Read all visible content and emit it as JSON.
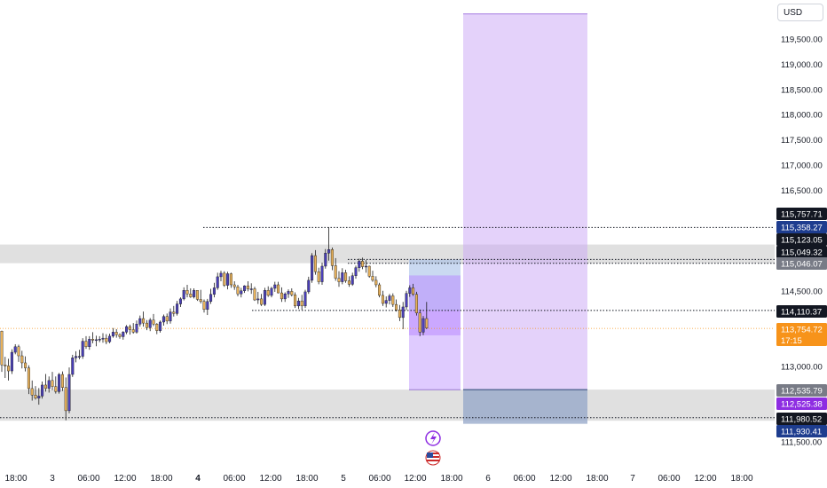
{
  "chart_data": {
    "type": "candlestick",
    "currency": "USD",
    "y_axis": {
      "range": [
        111250,
        120000
      ],
      "ticks": [
        {
          "value": 119500,
          "label": "119,500.00"
        },
        {
          "value": 119000,
          "label": "119,000.00"
        },
        {
          "value": 118500,
          "label": "118,500.00"
        },
        {
          "value": 118000,
          "label": "118,000.00"
        },
        {
          "value": 117500,
          "label": "117,500.00"
        },
        {
          "value": 117000,
          "label": "117,000.00"
        },
        {
          "value": 116500,
          "label": "116,500.00"
        },
        {
          "value": 114500,
          "label": "114,500.00"
        },
        {
          "value": 113000,
          "label": "113,000.00"
        },
        {
          "value": 111500,
          "label": "111,500.00"
        }
      ]
    },
    "x_axis": {
      "ticks": [
        {
          "label": "18:00",
          "bold": false
        },
        {
          "label": "3",
          "bold": false
        },
        {
          "label": "06:00",
          "bold": false
        },
        {
          "label": "12:00",
          "bold": false
        },
        {
          "label": "18:00",
          "bold": false
        },
        {
          "label": "4",
          "bold": true
        },
        {
          "label": "06:00",
          "bold": false
        },
        {
          "label": "12:00",
          "bold": false
        },
        {
          "label": "18:00",
          "bold": false
        },
        {
          "label": "5",
          "bold": false
        },
        {
          "label": "06:00",
          "bold": false
        },
        {
          "label": "12:00",
          "bold": false
        },
        {
          "label": "18:00",
          "bold": false
        },
        {
          "label": "6",
          "bold": false
        },
        {
          "label": "06:00",
          "bold": false
        },
        {
          "label": "12:00",
          "bold": false
        },
        {
          "label": "18:00",
          "bold": false
        },
        {
          "label": "7",
          "bold": false
        },
        {
          "label": "06:00",
          "bold": false
        },
        {
          "label": "12:00",
          "bold": false
        },
        {
          "label": "18:00",
          "bold": false
        }
      ]
    },
    "price_labels": [
      {
        "value": 115757.71,
        "text": "115,757.71",
        "bg": "#131722"
      },
      {
        "value": 115358.27,
        "text": "115,358.27",
        "bg": "#1e3d8f"
      },
      {
        "value": 115123.05,
        "text": "115,123.05",
        "bg": "#131722"
      },
      {
        "value": 115049.32,
        "text": "115,049.32",
        "bg": "#131722"
      },
      {
        "value": 115046.07,
        "text": "115,046.07",
        "bg": "#787b86"
      },
      {
        "value": 114110.37,
        "text": "114,110.37",
        "bg": "#131722"
      },
      {
        "value": 113754.72,
        "text": "113,754.72",
        "bg": "#f7931a",
        "sub": "17:15"
      },
      {
        "value": 112535.79,
        "text": "112,535.79",
        "bg": "#787b86"
      },
      {
        "value": 112525.38,
        "text": "112,525.38",
        "bg": "#8e2de2"
      },
      {
        "value": 111980.52,
        "text": "111,980.52",
        "bg": "#131722"
      },
      {
        "value": 111930.41,
        "text": "111,930.41",
        "bg": "#1e3d8f"
      }
    ],
    "zones": [
      {
        "kind": "supply",
        "from": 115049,
        "to": 115420,
        "color": "#e0e0e0"
      },
      {
        "kind": "demand",
        "from": 111920,
        "to": 112540,
        "color": "#e0e0e0"
      }
    ],
    "levels": [
      115757.71,
      115123.05,
      115046.07,
      114110.37,
      111980.52
    ],
    "current_price": 113754.72,
    "candles": [
      {
        "o": 113700,
        "h": 113710,
        "l": 112890,
        "c": 113030
      },
      {
        "o": 113030,
        "h": 113190,
        "l": 112770,
        "c": 113010
      },
      {
        "o": 113010,
        "h": 113150,
        "l": 112720,
        "c": 112910
      },
      {
        "o": 112910,
        "h": 113340,
        "l": 112850,
        "c": 113280
      },
      {
        "o": 113280,
        "h": 113440,
        "l": 113240,
        "c": 113390
      },
      {
        "o": 113390,
        "h": 113430,
        "l": 113090,
        "c": 113210
      },
      {
        "o": 113210,
        "h": 113310,
        "l": 112960,
        "c": 113070
      },
      {
        "o": 113070,
        "h": 113200,
        "l": 112900,
        "c": 112970
      },
      {
        "o": 112970,
        "h": 113020,
        "l": 112450,
        "c": 112560
      },
      {
        "o": 112560,
        "h": 112720,
        "l": 112320,
        "c": 112430
      },
      {
        "o": 112430,
        "h": 112610,
        "l": 112340,
        "c": 112370
      },
      {
        "o": 112370,
        "h": 112570,
        "l": 112240,
        "c": 112410
      },
      {
        "o": 112410,
        "h": 112700,
        "l": 112360,
        "c": 112630
      },
      {
        "o": 112630,
        "h": 112850,
        "l": 112500,
        "c": 112560
      },
      {
        "o": 112560,
        "h": 112800,
        "l": 112480,
        "c": 112720
      },
      {
        "o": 112720,
        "h": 112890,
        "l": 112530,
        "c": 112600
      },
      {
        "o": 112600,
        "h": 112800,
        "l": 112460,
        "c": 112500
      },
      {
        "o": 112500,
        "h": 112870,
        "l": 112460,
        "c": 112840
      },
      {
        "o": 112840,
        "h": 112900,
        "l": 112510,
        "c": 112580
      },
      {
        "o": 112580,
        "h": 112780,
        "l": 111930,
        "c": 112120
      },
      {
        "o": 112120,
        "h": 112980,
        "l": 112070,
        "c": 112840
      },
      {
        "o": 112840,
        "h": 113230,
        "l": 112790,
        "c": 113170
      },
      {
        "o": 113170,
        "h": 113300,
        "l": 113080,
        "c": 113200
      },
      {
        "o": 113200,
        "h": 113330,
        "l": 113140,
        "c": 113200
      },
      {
        "o": 113200,
        "h": 113560,
        "l": 113150,
        "c": 113500
      },
      {
        "o": 113500,
        "h": 113600,
        "l": 113350,
        "c": 113390
      },
      {
        "o": 113390,
        "h": 113600,
        "l": 113330,
        "c": 113540
      },
      {
        "o": 113540,
        "h": 113680,
        "l": 113460,
        "c": 113520
      },
      {
        "o": 113520,
        "h": 113610,
        "l": 113400,
        "c": 113530
      },
      {
        "o": 113530,
        "h": 113600,
        "l": 113480,
        "c": 113540
      },
      {
        "o": 113540,
        "h": 113660,
        "l": 113470,
        "c": 113560
      },
      {
        "o": 113560,
        "h": 113640,
        "l": 113440,
        "c": 113490
      },
      {
        "o": 113490,
        "h": 113650,
        "l": 113460,
        "c": 113600
      },
      {
        "o": 113600,
        "h": 113760,
        "l": 113570,
        "c": 113680
      },
      {
        "o": 113680,
        "h": 113740,
        "l": 113570,
        "c": 113630
      },
      {
        "o": 113630,
        "h": 113660,
        "l": 113550,
        "c": 113590
      },
      {
        "o": 113590,
        "h": 113700,
        "l": 113530,
        "c": 113680
      },
      {
        "o": 113680,
        "h": 113820,
        "l": 113640,
        "c": 113790
      },
      {
        "o": 113790,
        "h": 113830,
        "l": 113630,
        "c": 113730
      },
      {
        "o": 113730,
        "h": 113860,
        "l": 113650,
        "c": 113680
      },
      {
        "o": 113680,
        "h": 113910,
        "l": 113650,
        "c": 113840
      },
      {
        "o": 113840,
        "h": 114010,
        "l": 113790,
        "c": 113950
      },
      {
        "o": 113950,
        "h": 114090,
        "l": 113790,
        "c": 113860
      },
      {
        "o": 113860,
        "h": 113920,
        "l": 113720,
        "c": 113770
      },
      {
        "o": 113770,
        "h": 113960,
        "l": 113700,
        "c": 113920
      },
      {
        "o": 113920,
        "h": 114040,
        "l": 113800,
        "c": 113840
      },
      {
        "o": 113840,
        "h": 113860,
        "l": 113640,
        "c": 113710
      },
      {
        "o": 113710,
        "h": 113910,
        "l": 113670,
        "c": 113880
      },
      {
        "o": 113880,
        "h": 114030,
        "l": 113810,
        "c": 113990
      },
      {
        "o": 113990,
        "h": 114050,
        "l": 113840,
        "c": 113900
      },
      {
        "o": 113900,
        "h": 114150,
        "l": 113850,
        "c": 114080
      },
      {
        "o": 114080,
        "h": 114200,
        "l": 113990,
        "c": 114050
      },
      {
        "o": 114050,
        "h": 114300,
        "l": 114010,
        "c": 114240
      },
      {
        "o": 114240,
        "h": 114370,
        "l": 114180,
        "c": 114340
      },
      {
        "o": 114340,
        "h": 114570,
        "l": 114310,
        "c": 114510
      },
      {
        "o": 114510,
        "h": 114620,
        "l": 114370,
        "c": 114440
      },
      {
        "o": 114440,
        "h": 114550,
        "l": 114360,
        "c": 114380
      },
      {
        "o": 114380,
        "h": 114550,
        "l": 114350,
        "c": 114510
      },
      {
        "o": 114510,
        "h": 114510,
        "l": 114300,
        "c": 114330
      },
      {
        "o": 114330,
        "h": 114520,
        "l": 114250,
        "c": 114290
      },
      {
        "o": 114290,
        "h": 114330,
        "l": 114070,
        "c": 114130
      },
      {
        "o": 114130,
        "h": 114340,
        "l": 114020,
        "c": 114290
      },
      {
        "o": 114290,
        "h": 114540,
        "l": 114240,
        "c": 114430
      },
      {
        "o": 114430,
        "h": 114660,
        "l": 114370,
        "c": 114560
      },
      {
        "o": 114560,
        "h": 114860,
        "l": 114520,
        "c": 114780
      },
      {
        "o": 114780,
        "h": 114900,
        "l": 114690,
        "c": 114850
      },
      {
        "o": 114850,
        "h": 114890,
        "l": 114580,
        "c": 114610
      },
      {
        "o": 114610,
        "h": 114880,
        "l": 114530,
        "c": 114840
      },
      {
        "o": 114840,
        "h": 114860,
        "l": 114560,
        "c": 114620
      },
      {
        "o": 114620,
        "h": 114690,
        "l": 114520,
        "c": 114580
      },
      {
        "o": 114580,
        "h": 114620,
        "l": 114390,
        "c": 114440
      },
      {
        "o": 114440,
        "h": 114560,
        "l": 114370,
        "c": 114500
      },
      {
        "o": 114500,
        "h": 114610,
        "l": 114460,
        "c": 114600
      },
      {
        "o": 114600,
        "h": 114690,
        "l": 114490,
        "c": 114540
      },
      {
        "o": 114540,
        "h": 114650,
        "l": 114440,
        "c": 114540
      },
      {
        "o": 114540,
        "h": 114580,
        "l": 114300,
        "c": 114320
      },
      {
        "o": 114320,
        "h": 114480,
        "l": 114240,
        "c": 114340
      },
      {
        "o": 114340,
        "h": 114440,
        "l": 114200,
        "c": 114230
      },
      {
        "o": 114230,
        "h": 114560,
        "l": 114200,
        "c": 114510
      },
      {
        "o": 114510,
        "h": 114590,
        "l": 114380,
        "c": 114410
      },
      {
        "o": 114410,
        "h": 114580,
        "l": 114370,
        "c": 114550
      },
      {
        "o": 114550,
        "h": 114680,
        "l": 114480,
        "c": 114620
      },
      {
        "o": 114620,
        "h": 114680,
        "l": 114450,
        "c": 114460
      },
      {
        "o": 114460,
        "h": 114570,
        "l": 114280,
        "c": 114340
      },
      {
        "o": 114340,
        "h": 114470,
        "l": 114280,
        "c": 114440
      },
      {
        "o": 114440,
        "h": 114530,
        "l": 114360,
        "c": 114490
      },
      {
        "o": 114490,
        "h": 114550,
        "l": 114390,
        "c": 114420
      },
      {
        "o": 114420,
        "h": 114470,
        "l": 114160,
        "c": 114200
      },
      {
        "o": 114200,
        "h": 114360,
        "l": 114140,
        "c": 114300
      },
      {
        "o": 114300,
        "h": 114420,
        "l": 114120,
        "c": 114200
      },
      {
        "o": 114200,
        "h": 114520,
        "l": 114160,
        "c": 114480
      },
      {
        "o": 114480,
        "h": 114780,
        "l": 114440,
        "c": 114710
      },
      {
        "o": 114710,
        "h": 115250,
        "l": 114660,
        "c": 115200
      },
      {
        "o": 115200,
        "h": 115310,
        "l": 114820,
        "c": 114880
      },
      {
        "o": 114880,
        "h": 114960,
        "l": 114630,
        "c": 114680
      },
      {
        "o": 114680,
        "h": 115060,
        "l": 114620,
        "c": 114990
      },
      {
        "o": 114990,
        "h": 115330,
        "l": 114940,
        "c": 115250
      },
      {
        "o": 115250,
        "h": 115760,
        "l": 115100,
        "c": 115320
      },
      {
        "o": 115320,
        "h": 115360,
        "l": 114910,
        "c": 115000
      },
      {
        "o": 115000,
        "h": 115150,
        "l": 114700,
        "c": 114750
      },
      {
        "o": 114750,
        "h": 114890,
        "l": 114580,
        "c": 114680
      },
      {
        "o": 114680,
        "h": 114950,
        "l": 114630,
        "c": 114860
      },
      {
        "o": 114860,
        "h": 114920,
        "l": 114660,
        "c": 114700
      },
      {
        "o": 114700,
        "h": 114790,
        "l": 114580,
        "c": 114630
      },
      {
        "o": 114630,
        "h": 114860,
        "l": 114600,
        "c": 114800
      },
      {
        "o": 114800,
        "h": 115000,
        "l": 114740,
        "c": 114960
      },
      {
        "o": 114960,
        "h": 115140,
        "l": 114880,
        "c": 115090
      },
      {
        "o": 115090,
        "h": 115160,
        "l": 114930,
        "c": 114980
      },
      {
        "o": 114980,
        "h": 115110,
        "l": 114860,
        "c": 114990
      },
      {
        "o": 114990,
        "h": 115000,
        "l": 114760,
        "c": 114790
      },
      {
        "o": 114790,
        "h": 114900,
        "l": 114680,
        "c": 114710
      },
      {
        "o": 114710,
        "h": 114790,
        "l": 114570,
        "c": 114620
      },
      {
        "o": 114620,
        "h": 114660,
        "l": 114370,
        "c": 114410
      },
      {
        "o": 114410,
        "h": 114500,
        "l": 114200,
        "c": 114250
      },
      {
        "o": 114250,
        "h": 114390,
        "l": 114170,
        "c": 114310
      },
      {
        "o": 114310,
        "h": 114440,
        "l": 114230,
        "c": 114400
      },
      {
        "o": 114400,
        "h": 114450,
        "l": 114180,
        "c": 114230
      },
      {
        "o": 114230,
        "h": 114330,
        "l": 114090,
        "c": 114120
      },
      {
        "o": 114120,
        "h": 114220,
        "l": 113900,
        "c": 113970
      },
      {
        "o": 113970,
        "h": 114280,
        "l": 113740,
        "c": 114180
      },
      {
        "o": 114180,
        "h": 114500,
        "l": 114120,
        "c": 114450
      },
      {
        "o": 114450,
        "h": 114610,
        "l": 114380,
        "c": 114560
      },
      {
        "o": 114560,
        "h": 114640,
        "l": 114400,
        "c": 114430
      },
      {
        "o": 114430,
        "h": 114480,
        "l": 114010,
        "c": 114060
      },
      {
        "o": 114060,
        "h": 114130,
        "l": 113600,
        "c": 113680
      },
      {
        "o": 113680,
        "h": 114000,
        "l": 113620,
        "c": 113950
      },
      {
        "o": 113950,
        "h": 114280,
        "l": 113740,
        "c": 113760
      }
    ]
  },
  "tools": {
    "short_position": {
      "entry": 114110.37,
      "stop": 115123.05,
      "target": 112535.79,
      "profit_color": "#b98cff",
      "risk_color": "#9fb9e6"
    },
    "long_projection": {
      "entry": 112535.79,
      "stop": 111930.41,
      "target": 120000,
      "profit_color": "#c9a6f5",
      "risk_color": "#93a5c8"
    }
  },
  "icons": [
    "lightning-replay-icon",
    "us-flag-icon"
  ]
}
